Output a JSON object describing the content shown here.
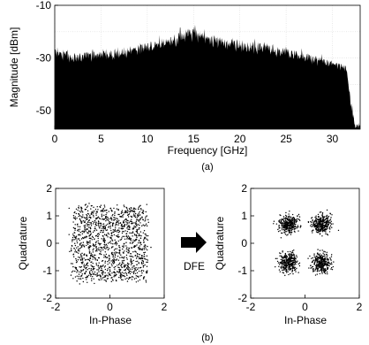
{
  "chart_data": [
    {
      "type": "area",
      "panel_label": "(a)",
      "xlabel": "Frequency [GHz]",
      "ylabel": "Magnitude [dBm]",
      "xlim": [
        0,
        33
      ],
      "ylim": [
        -57,
        -10
      ],
      "x_ticks": [
        0,
        5,
        10,
        15,
        20,
        25,
        30
      ],
      "y_ticks": [
        -10,
        -30,
        -50
      ],
      "grid": true,
      "fill_color": "#000000",
      "envelope": {
        "x": [
          0,
          1,
          2,
          4,
          6,
          8,
          10,
          12,
          13,
          14,
          15,
          16,
          17,
          18,
          20,
          22,
          24,
          26,
          28,
          30,
          31,
          31.5,
          32,
          32.5,
          33
        ],
        "peak_db": [
          -25,
          -27,
          -28,
          -27.5,
          -27,
          -26,
          -24,
          -22,
          -21,
          -19,
          -18,
          -20,
          -21,
          -22,
          -23,
          -24,
          -25.5,
          -27,
          -29,
          -31,
          -32,
          -33,
          -45,
          -55,
          -55
        ],
        "floor_db": [
          -31,
          -32,
          -32,
          -31.5,
          -31,
          -30,
          -28,
          -27,
          -26,
          -25,
          -24,
          -25,
          -26,
          -27,
          -28,
          -29,
          -30,
          -31,
          -33,
          -34,
          -35,
          -36,
          -50,
          -57,
          -57
        ]
      }
    },
    {
      "type": "scatter",
      "xlabel": "In-Phase",
      "ylabel": "Quadrature",
      "xlim": [
        -2,
        2
      ],
      "ylim": [
        -2,
        2
      ],
      "x_ticks": [
        -2,
        0,
        2
      ],
      "y_ticks": [
        -2,
        -1,
        0,
        1,
        2
      ],
      "grid": false,
      "distribution": "single diffuse cloud, roughly uniform over [-1.4, 1.4] in both axes",
      "cluster_centers": [
        [
          0,
          0
        ]
      ],
      "spread": 0.75,
      "points": 1400
    },
    {
      "type": "scatter",
      "xlabel": "In-Phase",
      "ylabel": "Quadrature",
      "xlim": [
        -2,
        2
      ],
      "ylim": [
        -2,
        2
      ],
      "x_ticks": [
        -2,
        0,
        2
      ],
      "y_ticks": [
        -2,
        -1,
        0,
        1,
        2
      ],
      "grid": false,
      "cluster_centers": [
        [
          -0.6,
          0.7
        ],
        [
          0.6,
          0.7
        ],
        [
          -0.6,
          -0.7
        ],
        [
          0.6,
          -0.7
        ]
      ],
      "spread": 0.17,
      "points_per_cluster": 330
    }
  ],
  "panel_b_label": "(b)",
  "arrow_label": "DFE"
}
